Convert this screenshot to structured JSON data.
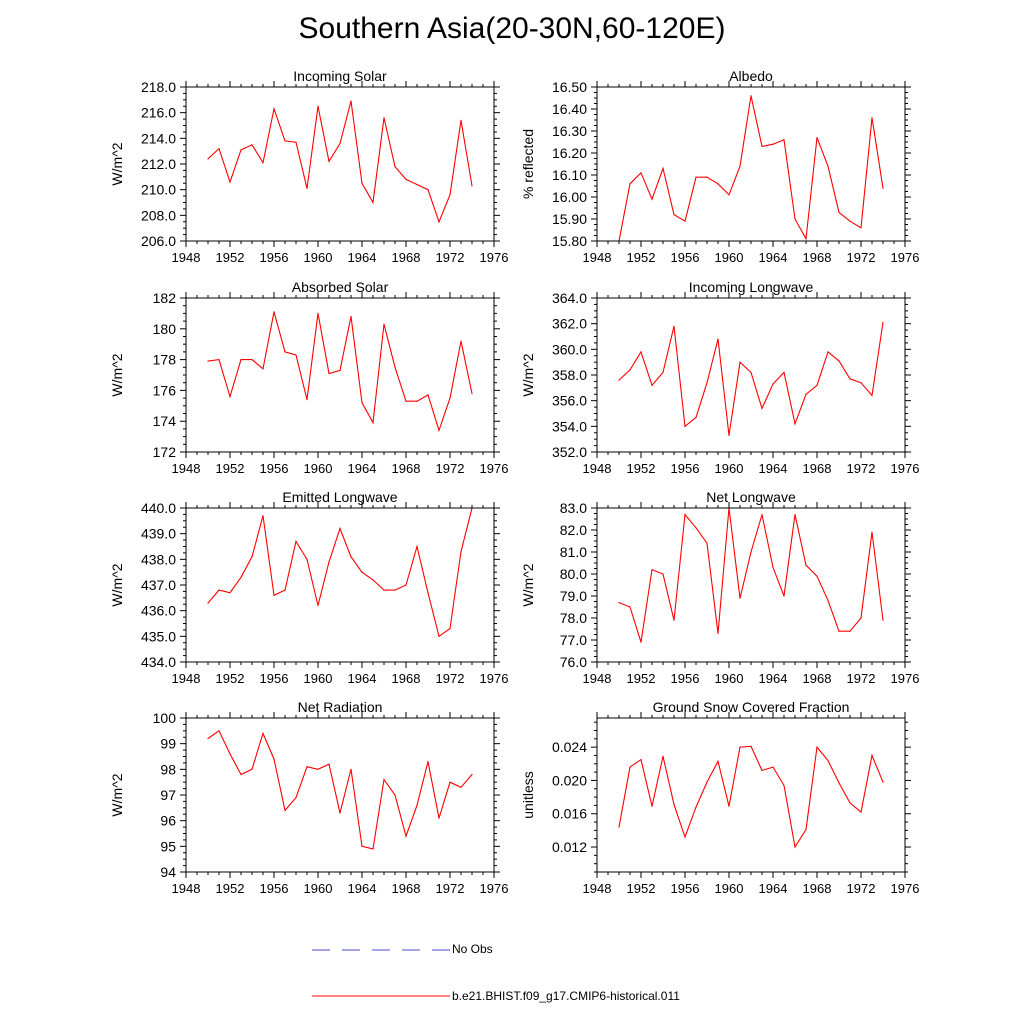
{
  "page": {
    "title": "Southern Asia(20-30N,60-120E)",
    "legend": [
      {
        "label": "No Obs",
        "color": "#4a4ad0",
        "dash": true
      },
      {
        "label": "b.e21.BHIST.f09_g17.CMIP6-historical.011",
        "color": "#ff0000",
        "dash": false
      }
    ]
  },
  "chart_data": [
    {
      "type": "line",
      "title": "Incoming Solar",
      "ylabel": "W/m^2",
      "xlim": [
        1948,
        1976
      ],
      "xticks": [
        1948,
        1952,
        1956,
        1960,
        1964,
        1968,
        1972,
        1976
      ],
      "xticklabels": [
        "1948",
        "1952",
        "1956",
        "1960",
        "1964",
        "1968",
        "1972",
        "1976"
      ],
      "ylim": [
        206.0,
        218.0
      ],
      "yticks": [
        206.0,
        208.0,
        210.0,
        212.0,
        214.0,
        216.0,
        218.0
      ],
      "yticklabels": [
        "206.0",
        "208.0",
        "210.0",
        "212.0",
        "214.0",
        "216.0",
        "218.0"
      ],
      "x": [
        1950,
        1951,
        1952,
        1953,
        1954,
        1955,
        1956,
        1957,
        1958,
        1959,
        1960,
        1961,
        1962,
        1963,
        1964,
        1965,
        1966,
        1967,
        1968,
        1969,
        1970,
        1971,
        1972,
        1973,
        1974
      ],
      "series": [
        {
          "color": "#ff0000",
          "values": [
            212.4,
            213.2,
            210.6,
            213.1,
            213.5,
            212.1,
            216.3,
            213.8,
            213.7,
            210.1,
            216.5,
            212.2,
            213.6,
            216.9,
            210.5,
            209.0,
            215.6,
            211.8,
            210.8,
            210.4,
            210.0,
            207.5,
            209.6,
            215.4,
            210.3
          ]
        }
      ]
    },
    {
      "type": "line",
      "title": "Albedo",
      "ylabel": "% reflected",
      "xlim": [
        1948,
        1976
      ],
      "xticks": [
        1948,
        1952,
        1956,
        1960,
        1964,
        1968,
        1972,
        1976
      ],
      "xticklabels": [
        "1948",
        "1952",
        "1956",
        "1960",
        "1964",
        "1968",
        "1972",
        "1976"
      ],
      "ylim": [
        15.8,
        16.5
      ],
      "yticks": [
        15.8,
        15.9,
        16.0,
        16.1,
        16.2,
        16.3,
        16.4,
        16.5
      ],
      "yticklabels": [
        "15.80",
        "15.90",
        "16.00",
        "16.10",
        "16.20",
        "16.30",
        "16.40",
        "16.50"
      ],
      "x": [
        1950,
        1951,
        1952,
        1953,
        1954,
        1955,
        1956,
        1957,
        1958,
        1959,
        1960,
        1961,
        1962,
        1963,
        1964,
        1965,
        1966,
        1967,
        1968,
        1969,
        1970,
        1971,
        1972,
        1973,
        1974
      ],
      "series": [
        {
          "color": "#ff0000",
          "values": [
            15.8,
            16.06,
            16.11,
            15.99,
            16.13,
            15.92,
            15.89,
            16.09,
            16.09,
            16.06,
            16.01,
            16.14,
            16.46,
            16.23,
            16.24,
            16.26,
            15.9,
            15.81,
            16.27,
            16.14,
            15.93,
            15.89,
            15.86,
            16.36,
            16.04
          ]
        }
      ]
    },
    {
      "type": "line",
      "title": "Absorbed Solar",
      "ylabel": "W/m^2",
      "xlim": [
        1948,
        1976
      ],
      "xticks": [
        1948,
        1952,
        1956,
        1960,
        1964,
        1968,
        1972,
        1976
      ],
      "xticklabels": [
        "1948",
        "1952",
        "1956",
        "1960",
        "1964",
        "1968",
        "1972",
        "1976"
      ],
      "ylim": [
        172,
        182
      ],
      "yticks": [
        172,
        174,
        176,
        178,
        180,
        182
      ],
      "yticklabels": [
        "172",
        "174",
        "176",
        "178",
        "180",
        "182"
      ],
      "x": [
        1950,
        1951,
        1952,
        1953,
        1954,
        1955,
        1956,
        1957,
        1958,
        1959,
        1960,
        1961,
        1962,
        1963,
        1964,
        1965,
        1966,
        1967,
        1968,
        1969,
        1970,
        1971,
        1972,
        1973,
        1974
      ],
      "series": [
        {
          "color": "#ff0000",
          "values": [
            177.9,
            178.0,
            175.6,
            178.0,
            178.0,
            177.4,
            181.1,
            178.5,
            178.3,
            175.4,
            181.0,
            177.1,
            177.3,
            180.8,
            175.2,
            173.9,
            180.3,
            177.5,
            175.3,
            175.3,
            175.7,
            173.4,
            175.5,
            179.2,
            175.8
          ]
        }
      ]
    },
    {
      "type": "line",
      "title": "Incoming Longwave",
      "ylabel": "W/m^2",
      "xlim": [
        1948,
        1976
      ],
      "xticks": [
        1948,
        1952,
        1956,
        1960,
        1964,
        1968,
        1972,
        1976
      ],
      "xticklabels": [
        "1948",
        "1952",
        "1956",
        "1960",
        "1964",
        "1968",
        "1972",
        "1976"
      ],
      "ylim": [
        352.0,
        364.0
      ],
      "yticks": [
        352.0,
        354.0,
        356.0,
        358.0,
        360.0,
        362.0,
        364.0
      ],
      "yticklabels": [
        "352.0",
        "354.0",
        "356.0",
        "358.0",
        "360.0",
        "362.0",
        "364.0"
      ],
      "x": [
        1950,
        1951,
        1952,
        1953,
        1954,
        1955,
        1956,
        1957,
        1958,
        1959,
        1960,
        1961,
        1962,
        1963,
        1964,
        1965,
        1966,
        1967,
        1968,
        1969,
        1970,
        1971,
        1972,
        1973,
        1974
      ],
      "series": [
        {
          "color": "#ff0000",
          "values": [
            357.6,
            358.4,
            359.8,
            357.2,
            358.2,
            361.8,
            354.0,
            354.7,
            357.4,
            360.8,
            353.3,
            359.0,
            358.2,
            355.4,
            357.3,
            358.2,
            354.2,
            356.5,
            357.2,
            359.8,
            359.1,
            357.7,
            357.4,
            356.4,
            362.1
          ]
        }
      ]
    },
    {
      "type": "line",
      "title": "Emitted Longwave",
      "ylabel": "W/m^2",
      "xlim": [
        1948,
        1976
      ],
      "xticks": [
        1948,
        1952,
        1956,
        1960,
        1964,
        1968,
        1972,
        1976
      ],
      "xticklabels": [
        "1948",
        "1952",
        "1956",
        "1960",
        "1964",
        "1968",
        "1972",
        "1976"
      ],
      "ylim": [
        434.0,
        440.0
      ],
      "yticks": [
        434.0,
        435.0,
        436.0,
        437.0,
        438.0,
        439.0,
        440.0
      ],
      "yticklabels": [
        "434.0",
        "435.0",
        "436.0",
        "437.0",
        "438.0",
        "439.0",
        "440.0"
      ],
      "x": [
        1950,
        1951,
        1952,
        1953,
        1954,
        1955,
        1956,
        1957,
        1958,
        1959,
        1960,
        1961,
        1962,
        1963,
        1964,
        1965,
        1966,
        1967,
        1968,
        1969,
        1970,
        1971,
        1972,
        1973,
        1974
      ],
      "series": [
        {
          "color": "#ff0000",
          "values": [
            436.3,
            436.8,
            436.7,
            437.3,
            438.1,
            439.7,
            436.6,
            436.8,
            438.7,
            438.0,
            436.2,
            437.9,
            439.2,
            438.1,
            437.5,
            437.2,
            436.8,
            436.8,
            437.0,
            438.5,
            436.7,
            435.0,
            435.3,
            438.3,
            440.0
          ]
        }
      ]
    },
    {
      "type": "line",
      "title": "Net Longwave",
      "ylabel": "W/m^2",
      "xlim": [
        1948,
        1976
      ],
      "xticks": [
        1948,
        1952,
        1956,
        1960,
        1964,
        1968,
        1972,
        1976
      ],
      "xticklabels": [
        "1948",
        "1952",
        "1956",
        "1960",
        "1964",
        "1968",
        "1972",
        "1976"
      ],
      "ylim": [
        76.0,
        83.0
      ],
      "yticks": [
        76.0,
        77.0,
        78.0,
        79.0,
        80.0,
        81.0,
        82.0,
        83.0
      ],
      "yticklabels": [
        "76.0",
        "77.0",
        "78.0",
        "79.0",
        "80.0",
        "81.0",
        "82.0",
        "83.0"
      ],
      "x": [
        1950,
        1951,
        1952,
        1953,
        1954,
        1955,
        1956,
        1957,
        1958,
        1959,
        1960,
        1961,
        1962,
        1963,
        1964,
        1965,
        1966,
        1967,
        1968,
        1969,
        1970,
        1971,
        1972,
        1973,
        1974
      ],
      "series": [
        {
          "color": "#ff0000",
          "values": [
            78.7,
            78.5,
            76.9,
            80.2,
            80.0,
            77.9,
            82.7,
            82.1,
            81.4,
            77.3,
            83.0,
            78.9,
            81.0,
            82.7,
            80.3,
            79.0,
            82.7,
            80.4,
            79.9,
            78.8,
            77.4,
            77.4,
            78.0,
            81.9,
            77.9
          ]
        }
      ]
    },
    {
      "type": "line",
      "title": "Net Radiation",
      "ylabel": "W/m^2",
      "xlim": [
        1948,
        1976
      ],
      "xticks": [
        1948,
        1952,
        1956,
        1960,
        1964,
        1968,
        1972,
        1976
      ],
      "xticklabels": [
        "1948",
        "1952",
        "1956",
        "1960",
        "1964",
        "1968",
        "1972",
        "1976"
      ],
      "ylim": [
        94,
        100
      ],
      "yticks": [
        94,
        95,
        96,
        97,
        98,
        99,
        100
      ],
      "yticklabels": [
        "94",
        "95",
        "96",
        "97",
        "98",
        "99",
        "100"
      ],
      "x": [
        1950,
        1951,
        1952,
        1953,
        1954,
        1955,
        1956,
        1957,
        1958,
        1959,
        1960,
        1961,
        1962,
        1963,
        1964,
        1965,
        1966,
        1967,
        1968,
        1969,
        1970,
        1971,
        1972,
        1973,
        1974
      ],
      "series": [
        {
          "color": "#ff0000",
          "values": [
            99.2,
            99.5,
            98.6,
            97.8,
            98.0,
            99.4,
            98.4,
            96.4,
            96.9,
            98.1,
            98.0,
            98.2,
            96.3,
            98.0,
            95.0,
            94.9,
            97.6,
            97.0,
            95.4,
            96.6,
            98.3,
            96.1,
            97.5,
            97.3,
            97.8
          ]
        }
      ]
    },
    {
      "type": "line",
      "title": "Ground Snow Covered Fraction",
      "ylabel": "unitless",
      "xlim": [
        1948,
        1976
      ],
      "xticks": [
        1948,
        1952,
        1956,
        1960,
        1964,
        1968,
        1972,
        1976
      ],
      "xticklabels": [
        "1948",
        "1952",
        "1956",
        "1960",
        "1964",
        "1968",
        "1972",
        "1976"
      ],
      "ylim": [
        0.009,
        0.0275
      ],
      "yticks": [
        0.012,
        0.016,
        0.02,
        0.024
      ],
      "yticklabels": [
        "0.012",
        "0.016",
        "0.020",
        "0.024"
      ],
      "x": [
        1950,
        1951,
        1952,
        1953,
        1954,
        1955,
        1956,
        1957,
        1958,
        1959,
        1960,
        1961,
        1962,
        1963,
        1964,
        1965,
        1966,
        1967,
        1968,
        1969,
        1970,
        1971,
        1972,
        1973,
        1974
      ],
      "series": [
        {
          "color": "#ff0000",
          "values": [
            0.0144,
            0.0216,
            0.0225,
            0.0169,
            0.0229,
            0.0171,
            0.0132,
            0.0168,
            0.0198,
            0.0223,
            0.0169,
            0.024,
            0.0241,
            0.0212,
            0.0216,
            0.0194,
            0.012,
            0.0141,
            0.024,
            0.0224,
            0.0197,
            0.0173,
            0.0162,
            0.023,
            0.0198
          ]
        }
      ]
    }
  ]
}
